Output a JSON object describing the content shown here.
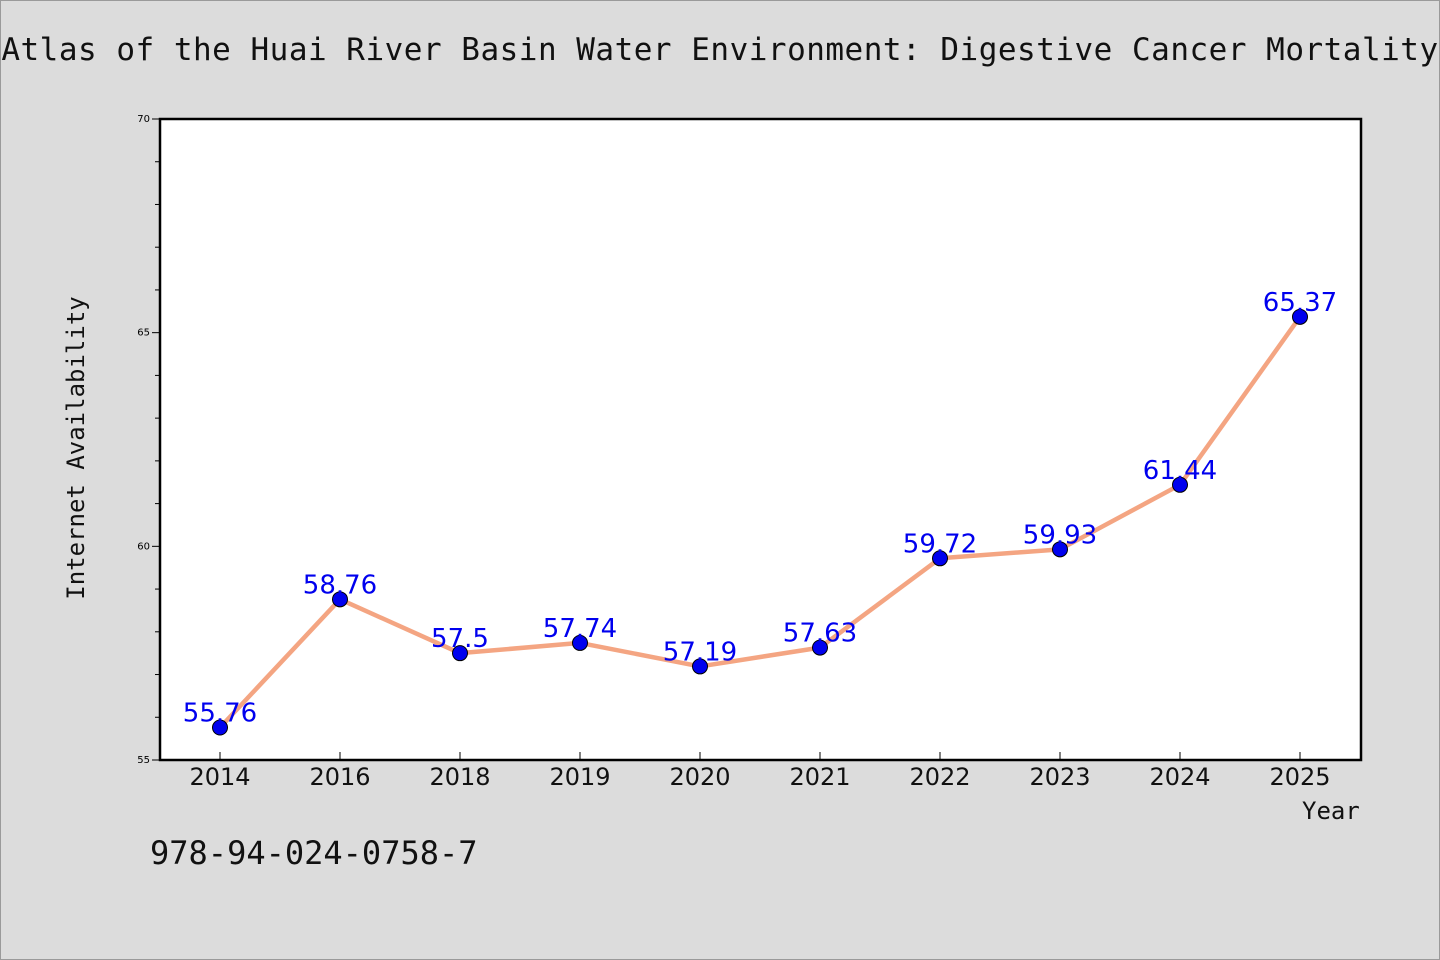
{
  "chart_data": {
    "type": "line",
    "title": "Atlas of the Huai River Basin Water Environment: Digestive Cancer Mortality",
    "xlabel": "Year",
    "ylabel": "Internet Availability",
    "categories": [
      "2014",
      "2016",
      "2018",
      "2019",
      "2020",
      "2021",
      "2022",
      "2023",
      "2024",
      "2025"
    ],
    "values": [
      55.76,
      58.76,
      57.5,
      57.74,
      57.19,
      57.63,
      59.72,
      59.93,
      61.44,
      65.37
    ],
    "data_labels": [
      "55.76",
      "58.76",
      "57.5",
      "57.74",
      "57.19",
      "57.63",
      "59.72",
      "59.93",
      "61.44",
      "65.37"
    ],
    "ylim": [
      55,
      70
    ],
    "y_major_ticks": [
      55,
      60,
      65,
      70
    ],
    "y_tick_labels": [
      "55",
      "60",
      "65",
      "70"
    ],
    "y_minor_step": 1,
    "grid": false,
    "legend": "none",
    "colors": {
      "line": "#f4a582",
      "marker": "#0000ee",
      "data_label": "#0000ee",
      "plot_background": "#ffffff",
      "figure_background": "#dcdcdc"
    }
  },
  "footer": {
    "isbn": "978-94-024-0758-7"
  }
}
